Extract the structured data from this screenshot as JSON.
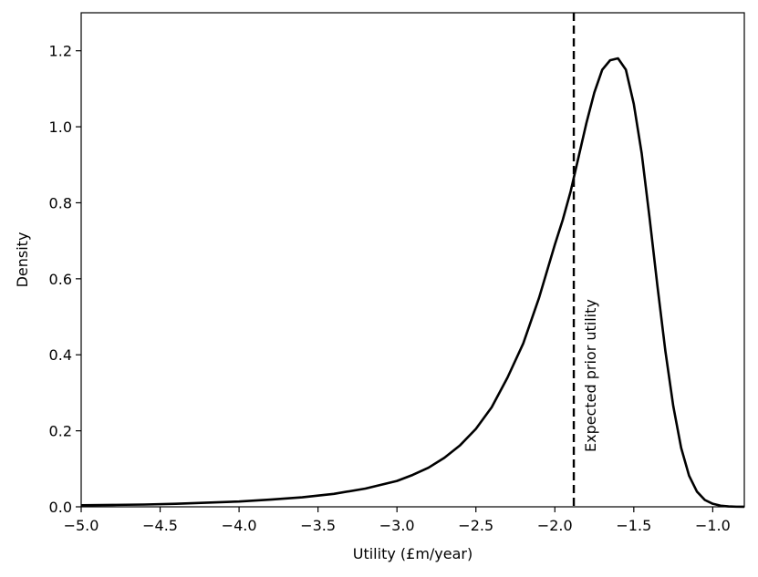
{
  "chart_data": {
    "type": "line",
    "title": "",
    "xlabel": "Utility (£m/year)",
    "ylabel": "Density",
    "xlim": [
      -5.0,
      -0.8
    ],
    "ylim": [
      0.0,
      1.3
    ],
    "xticks": [
      -5.0,
      -4.5,
      -4.0,
      -3.5,
      -3.0,
      -2.5,
      -2.0,
      -1.5,
      -1.0
    ],
    "xtick_labels": [
      "−5.0",
      "−4.5",
      "−4.0",
      "−3.5",
      "−3.0",
      "−2.5",
      "−2.0",
      "−1.5",
      "−1.0"
    ],
    "yticks": [
      0.0,
      0.2,
      0.4,
      0.6,
      0.8,
      1.0,
      1.2
    ],
    "ytick_labels": [
      "0.0",
      "0.2",
      "0.4",
      "0.6",
      "0.8",
      "1.0",
      "1.2"
    ],
    "grid": false,
    "series": [
      {
        "color": "#000000",
        "x": [
          -5.0,
          -4.8,
          -4.6,
          -4.4,
          -4.2,
          -4.0,
          -3.8,
          -3.6,
          -3.4,
          -3.2,
          -3.0,
          -2.9,
          -2.8,
          -2.7,
          -2.6,
          -2.5,
          -2.4,
          -2.3,
          -2.2,
          -2.1,
          -2.0,
          -1.95,
          -1.9,
          -1.85,
          -1.8,
          -1.75,
          -1.7,
          -1.65,
          -1.6,
          -1.55,
          -1.5,
          -1.45,
          -1.4,
          -1.35,
          -1.3,
          -1.25,
          -1.2,
          -1.15,
          -1.1,
          -1.05,
          -1.0,
          -0.95,
          -0.9,
          -0.85,
          -0.8
        ],
        "y": [
          0.004,
          0.005,
          0.006,
          0.008,
          0.011,
          0.014,
          0.019,
          0.025,
          0.034,
          0.048,
          0.068,
          0.084,
          0.103,
          0.129,
          0.162,
          0.205,
          0.262,
          0.34,
          0.43,
          0.55,
          0.69,
          0.755,
          0.83,
          0.92,
          1.01,
          1.09,
          1.15,
          1.175,
          1.18,
          1.15,
          1.06,
          0.93,
          0.76,
          0.58,
          0.41,
          0.265,
          0.155,
          0.082,
          0.04,
          0.018,
          0.008,
          0.003,
          0.001,
          0.0003,
          0.0001
        ]
      }
    ],
    "vline": {
      "x": -1.88,
      "style": "dashed",
      "color": "#000000",
      "label": "Expected prior utility"
    }
  }
}
